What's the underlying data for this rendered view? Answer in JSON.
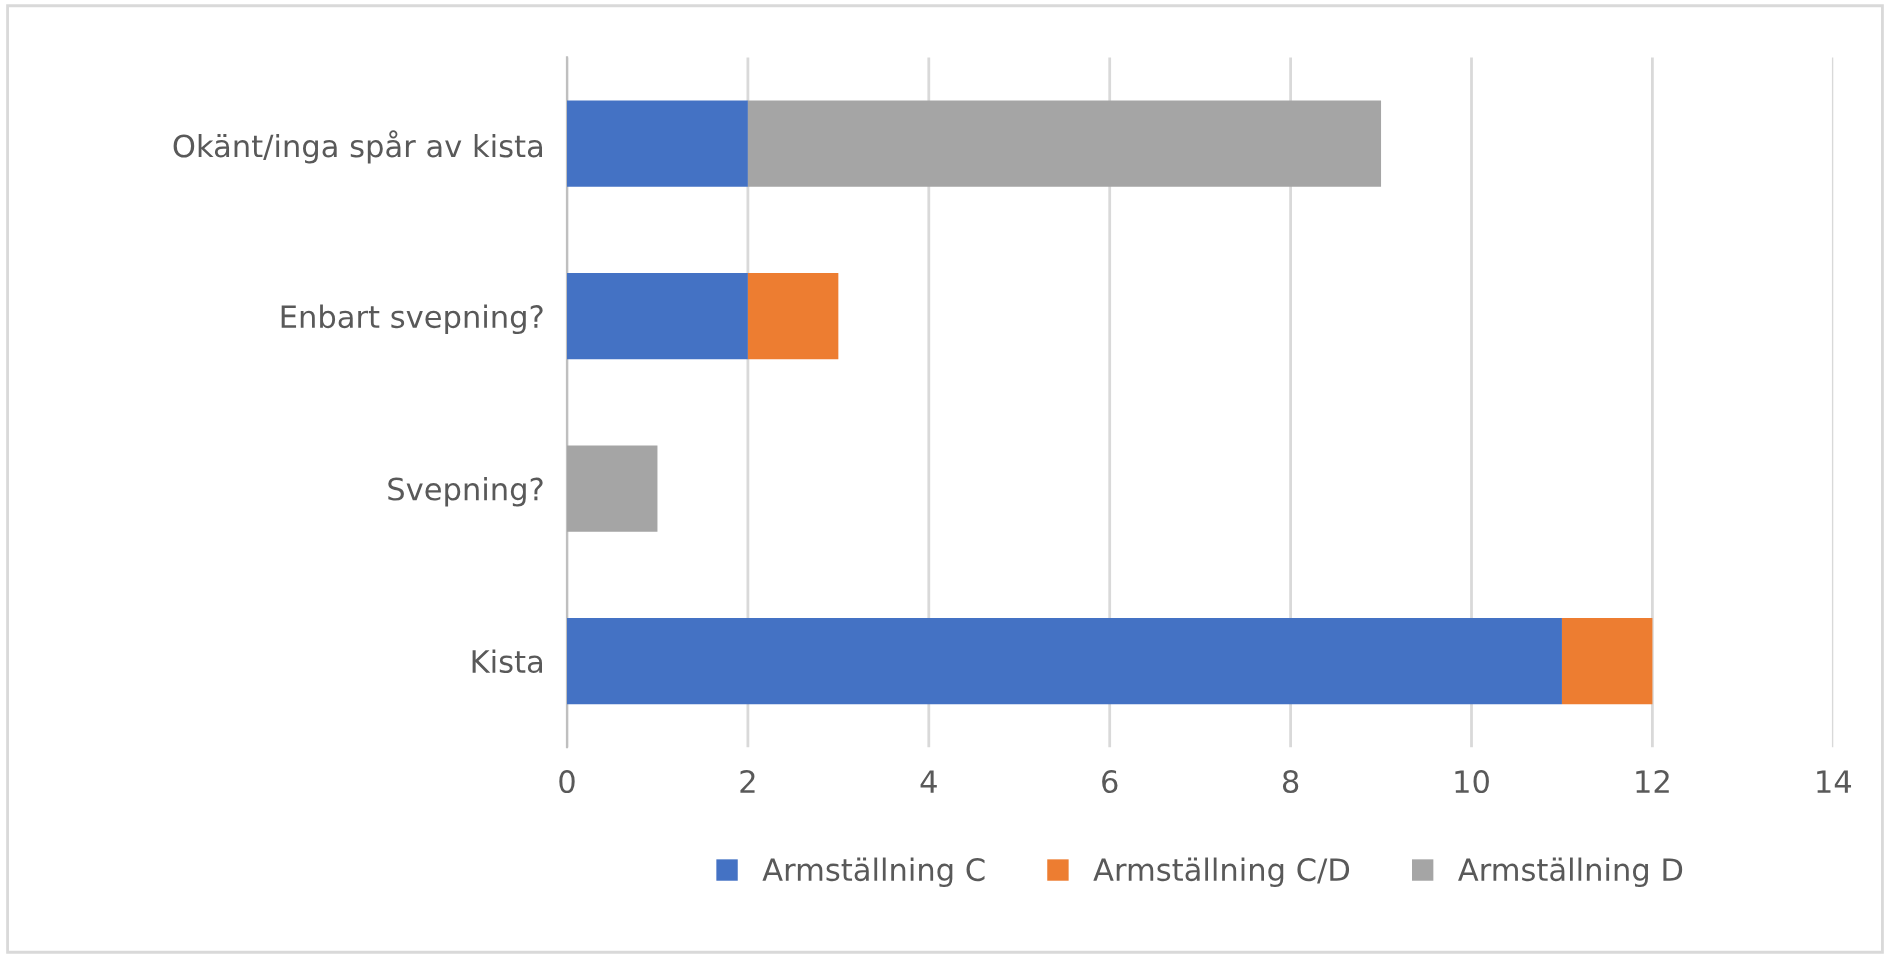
{
  "chart_data": {
    "type": "bar",
    "orientation": "horizontal",
    "stacked": true,
    "categories": [
      "Okänt/inga spår av kista",
      "Enbart svepning?",
      "Svepning?",
      "Kista"
    ],
    "series": [
      {
        "name": "Armställning C",
        "color": "#4472c4",
        "values": [
          2,
          2,
          null,
          11
        ]
      },
      {
        "name": "Armställning C/D",
        "color": "#ed7d31",
        "values": [
          null,
          1,
          null,
          1
        ]
      },
      {
        "name": "Armställning D",
        "color": "#a5a5a5",
        "values": [
          7,
          null,
          1,
          null
        ]
      }
    ],
    "xlim": [
      0,
      14
    ],
    "xticks": [
      0,
      2,
      4,
      6,
      8,
      10,
      12,
      14
    ],
    "grid": "x",
    "legend": "bottom"
  }
}
